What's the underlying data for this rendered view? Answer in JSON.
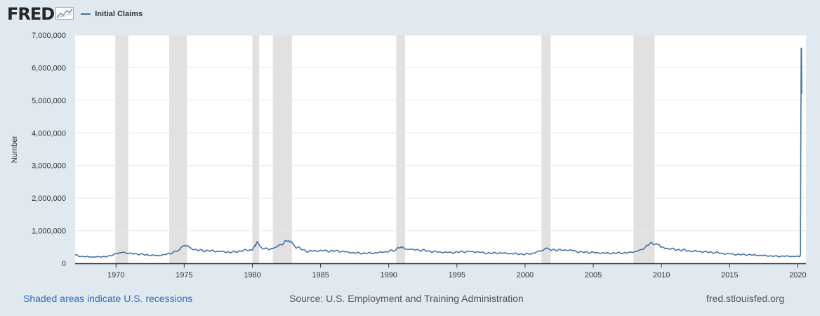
{
  "header": {
    "logo_text": "FRED",
    "series_label": "Initial Claims"
  },
  "colors": {
    "series": "#4572a7",
    "recession": "#e1e1e1",
    "background": "#e1e9f0",
    "plot_background": "#ffffff",
    "link": "#2a6ebb"
  },
  "footer": {
    "note": "Shaded areas indicate U.S. recessions",
    "source": "Source: U.S. Employment and Training Administration",
    "url": "fred.stlouisfed.org"
  },
  "chart_data": {
    "type": "line",
    "title": "",
    "xlabel": "",
    "ylabel": "Number",
    "xlim": [
      1967.0,
      2020.6
    ],
    "ylim": [
      0,
      7000000
    ],
    "y_ticks": [
      0,
      1000000,
      2000000,
      3000000,
      4000000,
      5000000,
      6000000,
      7000000
    ],
    "y_tick_labels": [
      "0",
      "1,000,000",
      "2,000,000",
      "3,000,000",
      "4,000,000",
      "5,000,000",
      "6,000,000",
      "7,000,000"
    ],
    "x_ticks": [
      1970,
      1975,
      1980,
      1985,
      1990,
      1995,
      2000,
      2005,
      2010,
      2015,
      2020
    ],
    "x_tick_labels": [
      "1970",
      "1975",
      "1980",
      "1985",
      "1990",
      "1995",
      "2000",
      "2005",
      "2010",
      "2015",
      "2020"
    ],
    "grid": "horizontal",
    "legend": "top-left",
    "recessions": [
      [
        1969.95,
        1970.9
      ],
      [
        1973.9,
        1975.2
      ],
      [
        1980.0,
        1980.5
      ],
      [
        1981.5,
        1982.9
      ],
      [
        1990.55,
        1991.2
      ],
      [
        2001.2,
        2001.87
      ],
      [
        2007.95,
        2009.5
      ]
    ],
    "series": [
      {
        "name": "Initial Claims",
        "x": [
          1967.0,
          1967.5,
          1968.0,
          1968.5,
          1969.0,
          1969.5,
          1970.0,
          1970.3,
          1970.6,
          1971.0,
          1971.5,
          1972.0,
          1972.5,
          1973.0,
          1973.5,
          1974.0,
          1974.5,
          1974.8,
          1975.0,
          1975.2,
          1975.5,
          1976.0,
          1976.5,
          1977.0,
          1977.5,
          1978.0,
          1978.5,
          1979.0,
          1979.5,
          1980.0,
          1980.2,
          1980.35,
          1980.6,
          1981.0,
          1981.5,
          1981.8,
          1982.0,
          1982.3,
          1982.6,
          1982.8,
          1983.0,
          1983.5,
          1984.0,
          1984.5,
          1985.0,
          1985.5,
          1986.0,
          1986.5,
          1987.0,
          1987.5,
          1988.0,
          1988.5,
          1989.0,
          1989.5,
          1990.0,
          1990.5,
          1990.8,
          1991.0,
          1991.3,
          1991.6,
          1992.0,
          1992.5,
          1993.0,
          1993.5,
          1994.0,
          1994.5,
          1995.0,
          1995.5,
          1996.0,
          1996.5,
          1997.0,
          1997.5,
          1998.0,
          1998.5,
          1999.0,
          1999.5,
          2000.0,
          2000.5,
          2001.0,
          2001.3,
          2001.7,
          2002.0,
          2002.5,
          2003.0,
          2003.5,
          2004.0,
          2004.5,
          2005.0,
          2005.5,
          2006.0,
          2006.5,
          2007.0,
          2007.5,
          2008.0,
          2008.5,
          2008.9,
          2009.2,
          2009.5,
          2009.8,
          2010.0,
          2010.5,
          2011.0,
          2011.5,
          2012.0,
          2012.5,
          2013.0,
          2013.5,
          2014.0,
          2014.5,
          2015.0,
          2015.5,
          2016.0,
          2016.5,
          2017.0,
          2017.5,
          2018.0,
          2018.5,
          2019.0,
          2019.5,
          2020.0,
          2020.15,
          2020.2,
          2020.22,
          2020.25,
          2020.27,
          2020.29
        ],
        "values": [
          250000,
          210000,
          200000,
          195000,
          205000,
          215000,
          300000,
          340000,
          320000,
          300000,
          290000,
          270000,
          250000,
          240000,
          260000,
          310000,
          380000,
          470000,
          550000,
          520000,
          460000,
          400000,
          390000,
          380000,
          370000,
          350000,
          340000,
          370000,
          400000,
          420000,
          570000,
          640000,
          480000,
          430000,
          450000,
          540000,
          580000,
          620000,
          680000,
          640000,
          560000,
          450000,
          370000,
          380000,
          390000,
          380000,
          380000,
          370000,
          340000,
          320000,
          310000,
          310000,
          320000,
          340000,
          370000,
          400000,
          480000,
          470000,
          450000,
          430000,
          420000,
          400000,
          370000,
          350000,
          340000,
          330000,
          340000,
          360000,
          360000,
          350000,
          320000,
          310000,
          320000,
          310000,
          300000,
          290000,
          280000,
          300000,
          360000,
          420000,
          450000,
          420000,
          400000,
          410000,
          390000,
          350000,
          340000,
          330000,
          320000,
          310000,
          310000,
          320000,
          320000,
          360000,
          400000,
          500000,
          620000,
          620000,
          550000,
          480000,
          460000,
          420000,
          410000,
          380000,
          370000,
          360000,
          340000,
          330000,
          300000,
          290000,
          270000,
          270000,
          260000,
          250000,
          240000,
          225000,
          215000,
          220000,
          215000,
          210000,
          210000,
          280000,
          3300000,
          6600000,
          6600000,
          5200000
        ]
      }
    ]
  }
}
